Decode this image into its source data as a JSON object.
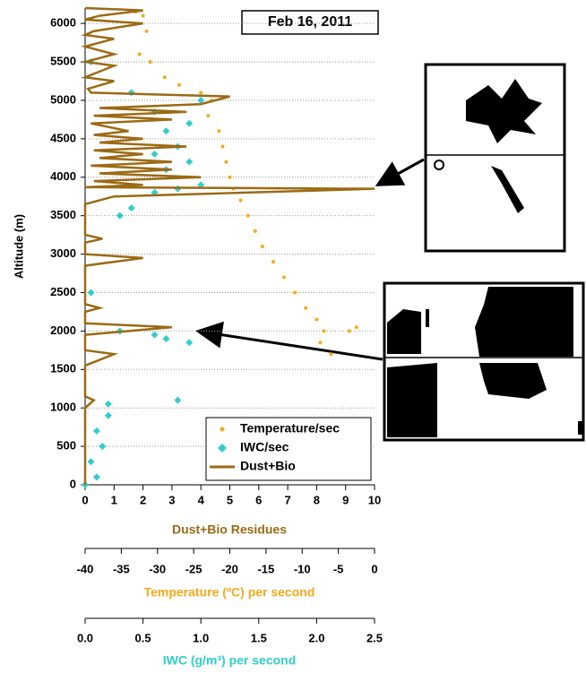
{
  "chart_data": {
    "type": "profile",
    "annotation": "Feb 16, 2011",
    "ylabel": "Altitude (m)",
    "xlabel": "Dust+Bio Residues",
    "x2label": "Temperature (ºC) per second",
    "x3label": "IWC (g/m³) per second",
    "ylim": [
      0,
      6200
    ],
    "yticks": [
      0,
      500,
      1000,
      1500,
      2000,
      2500,
      3000,
      3500,
      4000,
      4500,
      5000,
      5500,
      6000
    ],
    "xlim": [
      0,
      10
    ],
    "xticks": [
      0,
      1,
      2,
      3,
      4,
      5,
      6,
      7,
      8,
      9,
      10
    ],
    "x2lim": [
      -40,
      0
    ],
    "x2ticks": [
      -40,
      -35,
      -30,
      -25,
      -20,
      -15,
      -10,
      -5,
      0
    ],
    "x3lim": [
      0,
      2.5
    ],
    "x3ticks": [
      {
        "value": 0,
        "label": "0.0"
      },
      {
        "value": 0.5,
        "label": "0.5"
      },
      {
        "value": 1,
        "label": "1.0"
      },
      {
        "value": 1.5,
        "label": "1.5"
      },
      {
        "value": 2,
        "label": "2.0"
      },
      {
        "value": 2.5,
        "label": "2.5"
      }
    ],
    "grid": true,
    "legend": "lower right",
    "series": [
      {
        "name": "Temperature/sec",
        "color": "#f7a81b",
        "marker": "dot",
        "axis": "x2",
        "x": [
          -33,
          -32,
          -31.5,
          -32.5,
          -31,
          -29,
          -27,
          -24,
          -22.5,
          -23,
          -21.5,
          -21,
          -20.5,
          -20,
          -19.5,
          -18.5,
          -17.5,
          -16.5,
          -15.5,
          -14,
          -12.5,
          -11,
          -9.5,
          -8,
          -7,
          -7.5,
          -6,
          -3.5,
          -2.5
        ],
        "y": [
          6150,
          6100,
          5900,
          5600,
          5500,
          5300,
          5200,
          5100,
          5000,
          4800,
          4600,
          4400,
          4200,
          4000,
          3850,
          3700,
          3500,
          3300,
          3100,
          2900,
          2700,
          2500,
          2300,
          2150,
          2000,
          1850,
          1700,
          2000,
          2050
        ]
      },
      {
        "name": "IWC/sec",
        "color": "#33cccc",
        "marker": "diamond",
        "axis": "x3",
        "x": [
          0,
          0.1,
          0.05,
          0.15,
          0.1,
          0.2,
          0.2,
          0.8,
          0.9,
          0.7,
          0.6,
          0.3,
          0.05,
          0.3,
          0.4,
          0.6,
          0.8,
          1.0,
          0.7,
          0.9,
          0.6,
          0.8,
          0.7,
          0.9,
          0.6,
          1.0,
          0.4,
          0.05
        ],
        "y": [
          0,
          100,
          300,
          500,
          700,
          900,
          1050,
          1100,
          1850,
          1900,
          1950,
          2000,
          2500,
          3500,
          3600,
          3800,
          3850,
          3900,
          4100,
          4200,
          4300,
          4400,
          4600,
          4700,
          4850,
          5000,
          5100,
          5500
        ]
      },
      {
        "name": "Dust+Bio",
        "color": "#9b6a14",
        "marker": "line",
        "axis": "x",
        "x": [
          0,
          0,
          0.3,
          0,
          0,
          1,
          0,
          0,
          3,
          0,
          0,
          0.5,
          0,
          0,
          2,
          0,
          0,
          0.6,
          0,
          0,
          1,
          10,
          0,
          2,
          0.3,
          4,
          0.5,
          3,
          0.2,
          3,
          0.5,
          2,
          0.3,
          3.5,
          0.5,
          2,
          0.3,
          1.5,
          0.2,
          3,
          0.3,
          3.5,
          0.5,
          4,
          5,
          0.2,
          0.1,
          1,
          0,
          1,
          0,
          1,
          0,
          1,
          0,
          0.3,
          2,
          0,
          0.5,
          2,
          0
        ],
        "y": [
          0,
          1000,
          1100,
          1150,
          1550,
          1700,
          1750,
          1950,
          2050,
          2100,
          2250,
          2300,
          2350,
          2850,
          2950,
          3000,
          3150,
          3200,
          3250,
          3650,
          3750,
          3850,
          3870,
          3900,
          3950,
          4000,
          4050,
          4100,
          4150,
          4200,
          4250,
          4300,
          4350,
          4400,
          4450,
          4500,
          4550,
          4600,
          4700,
          4750,
          4800,
          4850,
          4900,
          4950,
          5050,
          5100,
          5150,
          5250,
          5300,
          5450,
          5500,
          5600,
          5700,
          5800,
          5850,
          5900,
          6000,
          6050,
          6100,
          6170,
          6200
        ]
      }
    ]
  }
}
